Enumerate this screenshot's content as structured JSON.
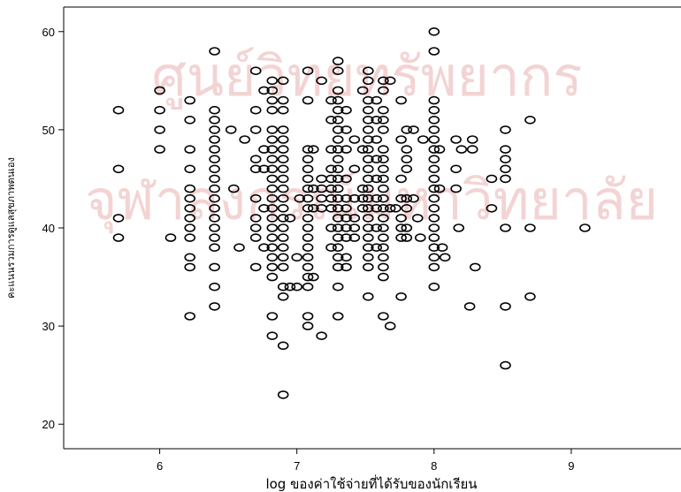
{
  "chart_data": {
    "type": "scatter",
    "xlabel": "log ของค่าใช้จ่ายที่ได้รับของนักเรียน",
    "ylabel": "คะแนนรวมการดูแลสุขภาพตนเอง",
    "xlim": [
      5.3,
      9.8
    ],
    "ylim": [
      17.5,
      62.5
    ],
    "xticks": [
      6,
      7,
      8,
      9
    ],
    "yticks": [
      20,
      30,
      40,
      50,
      60
    ],
    "grid": false,
    "watermark": [
      "ศูนย์วิทยทรัพยากร",
      "จุฬาลงกรณ์มหาวิทยาลัย"
    ],
    "x_columns": [
      5.7,
      6.0,
      6.22,
      6.4,
      6.52,
      6.6,
      6.7,
      6.76,
      6.82,
      6.9,
      6.97,
      7.05,
      7.12,
      7.18,
      7.25,
      7.3,
      7.36,
      7.42,
      7.48,
      7.52,
      7.58,
      7.63,
      7.7,
      7.76,
      7.82,
      7.88,
      7.94,
      8.0,
      8.06
    ],
    "points": [
      [
        5.7,
        52
      ],
      [
        5.7,
        46
      ],
      [
        5.7,
        41
      ],
      [
        5.7,
        39
      ],
      [
        6.0,
        54
      ],
      [
        6.0,
        52
      ],
      [
        6.0,
        50
      ],
      [
        6.0,
        48
      ],
      [
        6.08,
        39
      ],
      [
        6.22,
        53
      ],
      [
        6.22,
        51
      ],
      [
        6.22,
        48
      ],
      [
        6.22,
        46
      ],
      [
        6.22,
        44
      ],
      [
        6.22,
        43
      ],
      [
        6.22,
        42
      ],
      [
        6.22,
        41
      ],
      [
        6.22,
        40
      ],
      [
        6.22,
        39
      ],
      [
        6.22,
        37
      ],
      [
        6.22,
        36
      ],
      [
        6.22,
        31
      ],
      [
        6.4,
        58
      ],
      [
        6.4,
        52
      ],
      [
        6.4,
        51
      ],
      [
        6.4,
        50
      ],
      [
        6.4,
        49
      ],
      [
        6.4,
        48
      ],
      [
        6.4,
        47
      ],
      [
        6.4,
        46
      ],
      [
        6.4,
        45
      ],
      [
        6.4,
        44
      ],
      [
        6.4,
        43
      ],
      [
        6.4,
        42
      ],
      [
        6.4,
        41
      ],
      [
        6.4,
        40
      ],
      [
        6.4,
        39
      ],
      [
        6.4,
        38
      ],
      [
        6.4,
        36
      ],
      [
        6.4,
        34
      ],
      [
        6.4,
        32
      ],
      [
        6.52,
        50
      ],
      [
        6.54,
        44
      ],
      [
        6.58,
        38
      ],
      [
        6.62,
        49
      ],
      [
        6.7,
        56
      ],
      [
        6.7,
        52
      ],
      [
        6.7,
        50
      ],
      [
        6.7,
        47
      ],
      [
        6.7,
        46
      ],
      [
        6.7,
        43
      ],
      [
        6.7,
        41
      ],
      [
        6.7,
        40
      ],
      [
        6.7,
        39
      ],
      [
        6.7,
        36
      ],
      [
        6.76,
        54
      ],
      [
        6.76,
        48
      ],
      [
        6.76,
        46
      ],
      [
        6.76,
        42
      ],
      [
        6.76,
        38
      ],
      [
        6.82,
        55
      ],
      [
        6.82,
        54
      ],
      [
        6.82,
        53
      ],
      [
        6.82,
        52
      ],
      [
        6.82,
        50
      ],
      [
        6.82,
        49
      ],
      [
        6.82,
        48
      ],
      [
        6.82,
        47
      ],
      [
        6.82,
        46
      ],
      [
        6.82,
        45
      ],
      [
        6.82,
        44
      ],
      [
        6.82,
        43
      ],
      [
        6.82,
        42
      ],
      [
        6.82,
        41
      ],
      [
        6.82,
        40
      ],
      [
        6.82,
        39
      ],
      [
        6.82,
        38
      ],
      [
        6.82,
        37
      ],
      [
        6.82,
        36
      ],
      [
        6.82,
        35
      ],
      [
        6.82,
        31
      ],
      [
        6.82,
        29
      ],
      [
        6.9,
        55
      ],
      [
        6.9,
        53
      ],
      [
        6.9,
        52
      ],
      [
        6.9,
        50
      ],
      [
        6.9,
        49
      ],
      [
        6.9,
        48
      ],
      [
        6.9,
        47
      ],
      [
        6.9,
        46
      ],
      [
        6.9,
        45
      ],
      [
        6.9,
        44
      ],
      [
        6.9,
        43
      ],
      [
        6.9,
        42
      ],
      [
        6.9,
        41
      ],
      [
        6.9,
        40
      ],
      [
        6.9,
        39
      ],
      [
        6.9,
        38
      ],
      [
        6.9,
        37
      ],
      [
        6.9,
        36
      ],
      [
        6.9,
        34
      ],
      [
        6.9,
        33
      ],
      [
        6.9,
        28
      ],
      [
        6.9,
        23
      ],
      [
        6.95,
        41
      ],
      [
        6.95,
        34
      ],
      [
        7.0,
        37
      ],
      [
        7.0,
        34
      ],
      [
        7.02,
        43
      ],
      [
        7.08,
        56
      ],
      [
        7.08,
        53
      ],
      [
        7.08,
        48
      ],
      [
        7.08,
        47
      ],
      [
        7.08,
        46
      ],
      [
        7.08,
        45
      ],
      [
        7.08,
        44
      ],
      [
        7.08,
        43
      ],
      [
        7.08,
        42
      ],
      [
        7.08,
        41
      ],
      [
        7.08,
        40
      ],
      [
        7.08,
        39
      ],
      [
        7.08,
        38
      ],
      [
        7.08,
        37
      ],
      [
        7.08,
        36
      ],
      [
        7.08,
        35
      ],
      [
        7.08,
        34
      ],
      [
        7.08,
        31
      ],
      [
        7.08,
        30
      ],
      [
        7.12,
        48
      ],
      [
        7.12,
        44
      ],
      [
        7.12,
        42
      ],
      [
        7.12,
        35
      ],
      [
        7.18,
        55
      ],
      [
        7.18,
        45
      ],
      [
        7.18,
        44
      ],
      [
        7.18,
        43
      ],
      [
        7.18,
        42
      ],
      [
        7.18,
        29
      ],
      [
        7.25,
        53
      ],
      [
        7.25,
        51
      ],
      [
        7.25,
        48
      ],
      [
        7.25,
        46
      ],
      [
        7.25,
        45
      ],
      [
        7.25,
        44
      ],
      [
        7.25,
        43
      ],
      [
        7.25,
        42
      ],
      [
        7.25,
        40
      ],
      [
        7.25,
        38
      ],
      [
        7.3,
        57
      ],
      [
        7.3,
        56
      ],
      [
        7.3,
        54
      ],
      [
        7.3,
        53
      ],
      [
        7.3,
        52
      ],
      [
        7.3,
        51
      ],
      [
        7.3,
        50
      ],
      [
        7.3,
        49
      ],
      [
        7.3,
        48
      ],
      [
        7.3,
        47
      ],
      [
        7.3,
        46
      ],
      [
        7.3,
        45
      ],
      [
        7.3,
        44
      ],
      [
        7.3,
        43
      ],
      [
        7.3,
        42
      ],
      [
        7.3,
        41
      ],
      [
        7.3,
        40
      ],
      [
        7.3,
        39
      ],
      [
        7.3,
        38
      ],
      [
        7.3,
        37
      ],
      [
        7.3,
        36
      ],
      [
        7.3,
        34
      ],
      [
        7.3,
        31
      ],
      [
        7.36,
        52
      ],
      [
        7.36,
        50
      ],
      [
        7.36,
        48
      ],
      [
        7.36,
        45
      ],
      [
        7.36,
        43
      ],
      [
        7.36,
        42
      ],
      [
        7.36,
        41
      ],
      [
        7.36,
        40
      ],
      [
        7.36,
        39
      ],
      [
        7.36,
        37
      ],
      [
        7.36,
        36
      ],
      [
        7.42,
        49
      ],
      [
        7.42,
        46
      ],
      [
        7.42,
        43
      ],
      [
        7.42,
        41
      ],
      [
        7.42,
        40
      ],
      [
        7.42,
        39
      ],
      [
        7.48,
        54
      ],
      [
        7.48,
        48
      ],
      [
        7.48,
        44
      ],
      [
        7.48,
        43
      ],
      [
        7.48,
        42
      ],
      [
        7.52,
        56
      ],
      [
        7.52,
        55
      ],
      [
        7.52,
        53
      ],
      [
        7.52,
        52
      ],
      [
        7.52,
        51
      ],
      [
        7.52,
        50
      ],
      [
        7.52,
        49
      ],
      [
        7.52,
        48
      ],
      [
        7.52,
        47
      ],
      [
        7.52,
        46
      ],
      [
        7.52,
        45
      ],
      [
        7.52,
        44
      ],
      [
        7.52,
        43
      ],
      [
        7.52,
        42
      ],
      [
        7.52,
        41
      ],
      [
        7.52,
        40
      ],
      [
        7.52,
        39
      ],
      [
        7.52,
        38
      ],
      [
        7.52,
        37
      ],
      [
        7.52,
        36
      ],
      [
        7.52,
        33
      ],
      [
        7.58,
        53
      ],
      [
        7.58,
        51
      ],
      [
        7.58,
        49
      ],
      [
        7.58,
        47
      ],
      [
        7.58,
        45
      ],
      [
        7.58,
        43
      ],
      [
        7.58,
        42
      ],
      [
        7.58,
        40
      ],
      [
        7.58,
        38
      ],
      [
        7.63,
        55
      ],
      [
        7.63,
        54
      ],
      [
        7.63,
        52
      ],
      [
        7.63,
        51
      ],
      [
        7.63,
        50
      ],
      [
        7.63,
        48
      ],
      [
        7.63,
        47
      ],
      [
        7.63,
        46
      ],
      [
        7.63,
        45
      ],
      [
        7.63,
        44
      ],
      [
        7.63,
        43
      ],
      [
        7.63,
        42
      ],
      [
        7.63,
        41
      ],
      [
        7.63,
        40
      ],
      [
        7.63,
        39
      ],
      [
        7.63,
        38
      ],
      [
        7.63,
        37
      ],
      [
        7.63,
        36
      ],
      [
        7.63,
        35
      ],
      [
        7.63,
        31
      ],
      [
        7.68,
        55
      ],
      [
        7.68,
        42
      ],
      [
        7.68,
        30
      ],
      [
        7.72,
        42
      ],
      [
        7.76,
        53
      ],
      [
        7.76,
        49
      ],
      [
        7.76,
        45
      ],
      [
        7.76,
        43
      ],
      [
        7.76,
        41
      ],
      [
        7.76,
        40
      ],
      [
        7.76,
        39
      ],
      [
        7.76,
        33
      ],
      [
        7.8,
        50
      ],
      [
        7.8,
        48
      ],
      [
        7.8,
        47
      ],
      [
        7.8,
        46
      ],
      [
        7.8,
        43
      ],
      [
        7.8,
        42
      ],
      [
        7.8,
        40
      ],
      [
        7.8,
        39
      ],
      [
        7.85,
        50
      ],
      [
        7.85,
        43
      ],
      [
        7.88,
        41
      ],
      [
        7.9,
        39
      ],
      [
        7.92,
        49
      ],
      [
        8.0,
        60
      ],
      [
        8.0,
        58
      ],
      [
        8.0,
        53
      ],
      [
        8.0,
        52
      ],
      [
        8.0,
        51
      ],
      [
        8.0,
        50
      ],
      [
        8.0,
        49
      ],
      [
        8.0,
        48
      ],
      [
        8.0,
        47
      ],
      [
        8.0,
        46
      ],
      [
        8.0,
        45
      ],
      [
        8.0,
        44
      ],
      [
        8.0,
        43
      ],
      [
        8.0,
        42
      ],
      [
        8.0,
        41
      ],
      [
        8.0,
        40
      ],
      [
        8.0,
        39
      ],
      [
        8.0,
        38
      ],
      [
        8.0,
        37
      ],
      [
        8.0,
        36
      ],
      [
        8.0,
        34
      ],
      [
        8.04,
        48
      ],
      [
        8.04,
        44
      ],
      [
        8.06,
        38
      ],
      [
        8.08,
        37
      ],
      [
        8.16,
        49
      ],
      [
        8.16,
        46
      ],
      [
        8.16,
        44
      ],
      [
        8.18,
        40
      ],
      [
        8.2,
        48
      ],
      [
        8.28,
        49
      ],
      [
        8.28,
        48
      ],
      [
        8.3,
        36
      ],
      [
        8.26,
        32
      ],
      [
        8.42,
        45
      ],
      [
        8.42,
        42
      ],
      [
        8.52,
        50
      ],
      [
        8.52,
        48
      ],
      [
        8.52,
        47
      ],
      [
        8.52,
        46
      ],
      [
        8.52,
        45
      ],
      [
        8.52,
        40
      ],
      [
        8.52,
        32
      ],
      [
        8.52,
        26
      ],
      [
        8.7,
        51
      ],
      [
        8.7,
        40
      ],
      [
        8.7,
        33
      ],
      [
        9.1,
        40
      ]
    ]
  }
}
